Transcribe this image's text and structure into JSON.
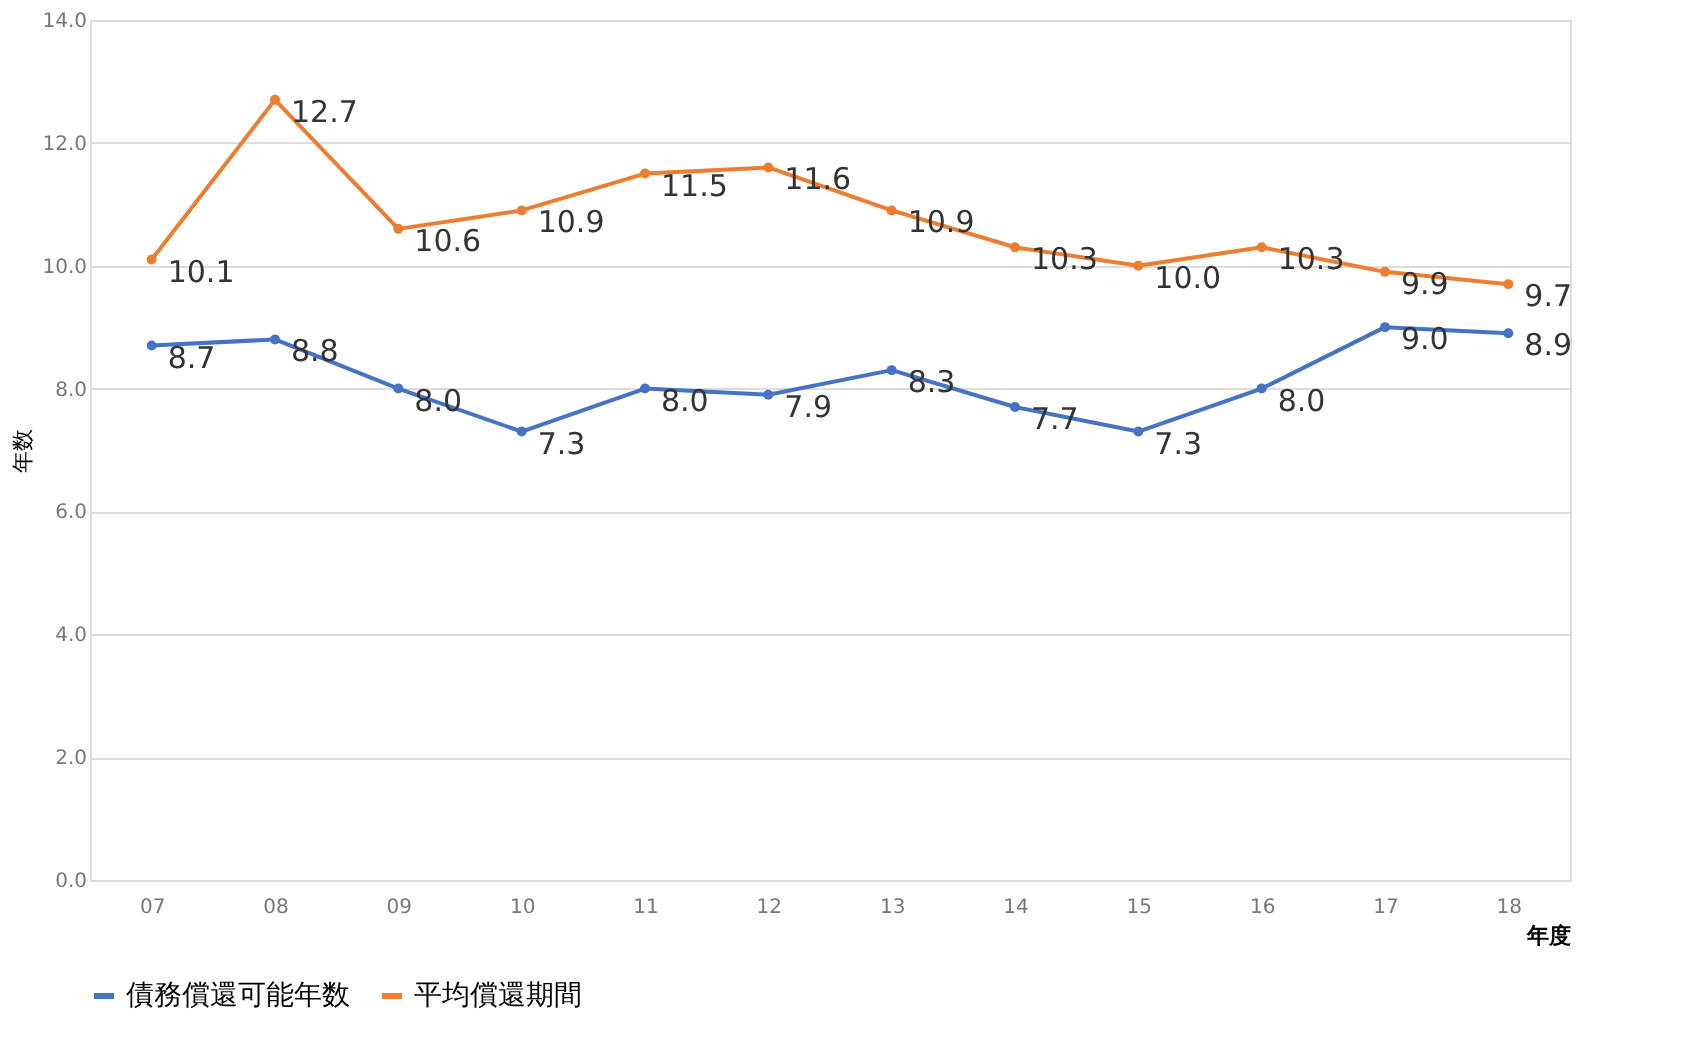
{
  "chart_data": {
    "type": "line",
    "xlabel": "年度",
    "ylabel": "年数",
    "categories": [
      "07",
      "08",
      "09",
      "10",
      "11",
      "12",
      "13",
      "14",
      "15",
      "16",
      "17",
      "18"
    ],
    "series": [
      {
        "name": "債務償還可能年数",
        "color": "#4472c4",
        "values": [
          8.7,
          8.8,
          8.0,
          7.3,
          8.0,
          7.9,
          8.3,
          7.7,
          7.3,
          8.0,
          9.0,
          8.9
        ],
        "value_labels": [
          "8.7",
          "8.8",
          "8.0",
          "7.3",
          "8.0",
          "7.9",
          "8.3",
          "7.7",
          "7.3",
          "8.0",
          "9.0",
          "8.9"
        ]
      },
      {
        "name": "平均償還期間",
        "color": "#ed7d31",
        "values": [
          10.1,
          12.7,
          10.6,
          10.9,
          11.5,
          11.6,
          10.9,
          10.3,
          10.0,
          10.3,
          9.9,
          9.7
        ],
        "value_labels": [
          "10.1",
          "12.7",
          "10.6",
          "10.9",
          "11.5",
          "11.6",
          "10.9",
          "10.3",
          "10.0",
          "10.3",
          "9.9",
          "9.7"
        ]
      }
    ],
    "ylim": [
      0,
      14
    ],
    "yticks": [
      {
        "value": 0,
        "label": "0.0"
      },
      {
        "value": 2,
        "label": "2.0"
      },
      {
        "value": 4,
        "label": "4.0"
      },
      {
        "value": 6,
        "label": "6.0"
      },
      {
        "value": 8,
        "label": "8.0"
      },
      {
        "value": 10,
        "label": "10.0"
      },
      {
        "value": 12,
        "label": "12.0"
      },
      {
        "value": 14,
        "label": "14.0"
      }
    ],
    "grid": "y",
    "legend": "bottom",
    "marker": "circle",
    "line_style": "solid"
  }
}
